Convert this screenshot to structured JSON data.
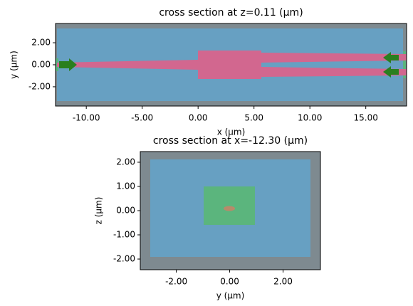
{
  "chart_data": [
    {
      "type": "cross-section",
      "title": "cross section at z=0.11 (μm)",
      "xlabel": "x (μm)",
      "ylabel": "y (μm)",
      "xlim": [
        -12.75,
        18.65
      ],
      "ylim": [
        -3.75,
        3.75
      ],
      "xticks": [
        {
          "value": -10,
          "label": "-10.00"
        },
        {
          "value": -5,
          "label": "-5.00"
        },
        {
          "value": 0,
          "label": "0.00"
        },
        {
          "value": 5,
          "label": "5.00"
        },
        {
          "value": 10,
          "label": "10.00"
        },
        {
          "value": 15,
          "label": "15.00"
        }
      ],
      "yticks": [
        {
          "value": 2,
          "label": "2.00"
        },
        {
          "value": 0,
          "label": "0.00"
        },
        {
          "value": -2,
          "label": "-2.00"
        }
      ]
    },
    {
      "type": "cross-section",
      "title": "cross section at x=-12.30 (μm)",
      "xlabel": "y (μm)",
      "ylabel": "z (μm)",
      "xlim": [
        -3.35,
        3.4
      ],
      "ylim": [
        -2.44,
        2.44
      ],
      "xticks": [
        {
          "value": -2,
          "label": "-2.00"
        },
        {
          "value": 0,
          "label": "0.00"
        },
        {
          "value": 2,
          "label": "2.00"
        }
      ],
      "yticks": [
        {
          "value": 2,
          "label": "2.00"
        },
        {
          "value": 1,
          "label": "1.00"
        },
        {
          "value": 0,
          "label": "0.00"
        },
        {
          "value": -1,
          "label": "-1.00"
        },
        {
          "value": -2,
          "label": "-2.00"
        }
      ]
    }
  ]
}
